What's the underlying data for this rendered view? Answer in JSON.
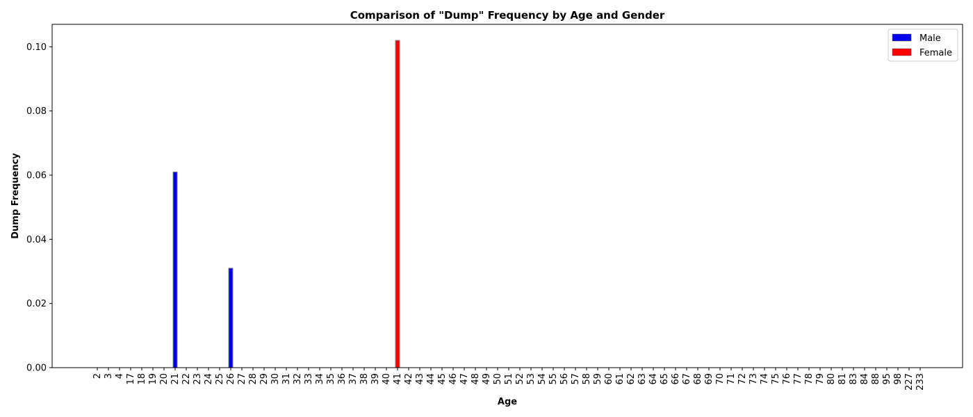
{
  "chart_data": {
    "type": "bar",
    "title": "Comparison of \"Dump\" Frequency by Age and Gender",
    "xlabel": "Age",
    "ylabel": "Dump Frequency",
    "ylim": [
      0,
      0.107
    ],
    "yticks": [
      "0.00",
      "0.02",
      "0.04",
      "0.06",
      "0.08",
      "0.10"
    ],
    "ytick_values": [
      0,
      0.02,
      0.04,
      0.06,
      0.08,
      0.1
    ],
    "categories": [
      "2",
      "3",
      "4",
      "17",
      "18",
      "19",
      "20",
      "21",
      "22",
      "23",
      "24",
      "25",
      "26",
      "27",
      "28",
      "29",
      "30",
      "31",
      "32",
      "33",
      "34",
      "35",
      "36",
      "37",
      "38",
      "39",
      "40",
      "41",
      "42",
      "43",
      "44",
      "45",
      "46",
      "47",
      "48",
      "49",
      "50",
      "51",
      "52",
      "53",
      "54",
      "55",
      "56",
      "57",
      "58",
      "59",
      "60",
      "61",
      "62",
      "63",
      "64",
      "65",
      "66",
      "67",
      "68",
      "69",
      "70",
      "71",
      "72",
      "73",
      "74",
      "75",
      "76",
      "77",
      "78",
      "79",
      "80",
      "81",
      "83",
      "84",
      "88",
      "95",
      "98",
      "227",
      "233"
    ],
    "series": [
      {
        "name": "Male",
        "color": "#0000ee",
        "values": [
          0,
          0,
          0,
          0,
          0,
          0,
          0,
          0.061,
          0,
          0,
          0,
          0,
          0.031,
          0,
          0,
          0,
          0,
          0,
          0,
          0,
          0,
          0,
          0,
          0,
          0,
          0,
          0,
          0,
          0,
          0,
          0,
          0,
          0,
          0,
          0,
          0,
          0,
          0,
          0,
          0,
          0,
          0,
          0,
          0,
          0,
          0,
          0,
          0,
          0,
          0,
          0,
          0,
          0,
          0,
          0,
          0,
          0,
          0,
          0,
          0,
          0,
          0,
          0,
          0,
          0,
          0,
          0,
          0,
          0,
          0,
          0,
          0,
          0,
          0,
          0
        ]
      },
      {
        "name": "Female",
        "color": "#ff0000",
        "values": [
          0,
          0,
          0,
          0,
          0,
          0,
          0,
          0,
          0,
          0,
          0,
          0,
          0,
          0,
          0,
          0,
          0,
          0,
          0,
          0,
          0,
          0,
          0,
          0,
          0,
          0,
          0,
          0.102,
          0,
          0,
          0,
          0,
          0,
          0,
          0,
          0,
          0,
          0,
          0,
          0,
          0,
          0,
          0,
          0,
          0,
          0,
          0,
          0,
          0,
          0,
          0,
          0,
          0,
          0,
          0,
          0,
          0,
          0,
          0,
          0,
          0,
          0,
          0,
          0,
          0,
          0,
          0,
          0,
          0,
          0,
          0,
          0,
          0,
          0,
          0
        ]
      }
    ],
    "legend_position": "top-right",
    "grid": false
  }
}
